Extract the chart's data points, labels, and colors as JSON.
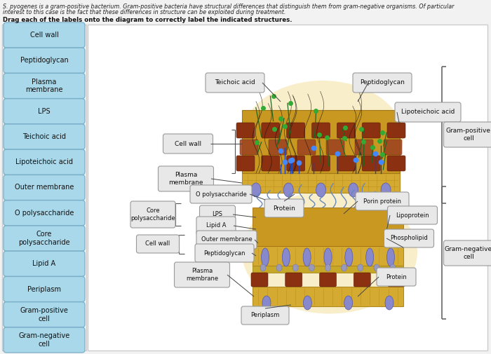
{
  "bg_color": "#f2f2f2",
  "main_panel_bg": "#f8f8f8",
  "left_panel_bg": "#f0f0f0",
  "title1": "S. pyogenes is a gram-positive bacterium. Gram-positive bacteria have structural differences that distinguish them from gram-negative organisms. Of particular",
  "title2": "interest to this case is the fact that these differences in structure can be exploited during treatment.",
  "subtitle": "Drag each of the labels onto the diagram to correctly label the indicated structures.",
  "left_labels": [
    "Cell wall",
    "Peptidoglycan",
    "Plasma\nmembrane",
    "LPS",
    "Teichoic acid",
    "Lipoteichoic acid",
    "Outer membrane",
    "O polysaccharide",
    "Core\npolysaccharide",
    "Lipid A",
    "Periplasm",
    "Gram-positive\ncell",
    "Gram-negative\ncell"
  ],
  "lbl_fc": "#a8d8ea",
  "lbl_ec": "#7ab0c8",
  "ann_fc": "#e8e8e8",
  "ann_ec": "#999999",
  "glow_color": "#f5e0a0",
  "gold_color": "#d4aa40",
  "gold_dark": "#b89020",
  "brown_color": "#8B4513",
  "brown_mid": "#a0522d",
  "blue_mol": "#6688cc",
  "green_mol": "#44aa44",
  "teal_mol": "#22aacc",
  "purple_prot": "#7878cc",
  "bracket_color": "#666666"
}
